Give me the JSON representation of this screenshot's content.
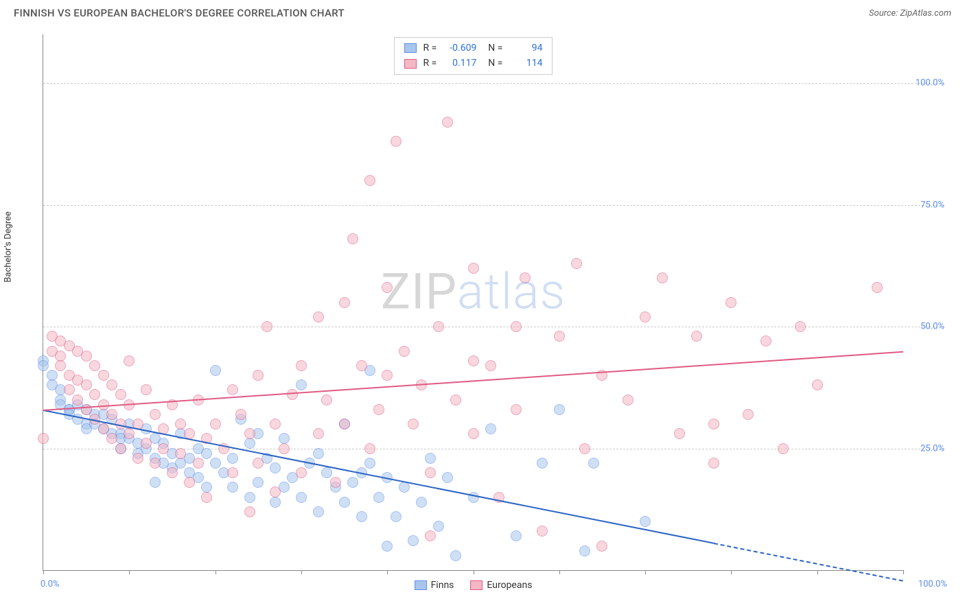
{
  "title": "FINNISH VS EUROPEAN BACHELOR'S DEGREE CORRELATION CHART",
  "source_label": "Source:",
  "source_name": "ZipAtlas.com",
  "ylabel": "Bachelor's Degree",
  "watermark_a": "ZIP",
  "watermark_b": "atlas",
  "chart": {
    "type": "scatter",
    "background_color": "#ffffff",
    "grid_color": "#cccccc",
    "axis_color": "#888888",
    "xlim": [
      0,
      100
    ],
    "ylim": [
      0,
      110
    ],
    "yticks": [
      25,
      50,
      75,
      100
    ],
    "ytick_labels": [
      "25.0%",
      "50.0%",
      "75.0%",
      "100.0%"
    ],
    "xticks": [
      0,
      10,
      20,
      30,
      40,
      50,
      60,
      70,
      80,
      90,
      100
    ],
    "x_start_label": "0.0%",
    "x_end_label": "100.0%",
    "tick_label_color": "#5b8def",
    "label_fontsize": 13,
    "marker_radius": 8,
    "marker_opacity": 0.55,
    "series": [
      {
        "name": "Finns",
        "fill": "#a8c6ec",
        "stroke": "#5b8def",
        "trend_color": "#2b64c4",
        "trend": {
          "y_at_x0": 33,
          "y_at_x100": -2,
          "solid_until_x": 78
        },
        "R": "-0.609",
        "N": "94",
        "points": [
          [
            0,
            43
          ],
          [
            0,
            42
          ],
          [
            1,
            40
          ],
          [
            1,
            38
          ],
          [
            2,
            37
          ],
          [
            2,
            35
          ],
          [
            2,
            34
          ],
          [
            3,
            33
          ],
          [
            3,
            33
          ],
          [
            3,
            32
          ],
          [
            4,
            34
          ],
          [
            4,
            31
          ],
          [
            5,
            33
          ],
          [
            5,
            30
          ],
          [
            5,
            29
          ],
          [
            6,
            32
          ],
          [
            6,
            30
          ],
          [
            7,
            29
          ],
          [
            7,
            32
          ],
          [
            8,
            31
          ],
          [
            8,
            28
          ],
          [
            9,
            28
          ],
          [
            9,
            27
          ],
          [
            9,
            25
          ],
          [
            10,
            30
          ],
          [
            10,
            27
          ],
          [
            11,
            26
          ],
          [
            11,
            24
          ],
          [
            12,
            29
          ],
          [
            12,
            25
          ],
          [
            13,
            27
          ],
          [
            13,
            23
          ],
          [
            13,
            18
          ],
          [
            14,
            26
          ],
          [
            14,
            22
          ],
          [
            15,
            24
          ],
          [
            15,
            21
          ],
          [
            16,
            28
          ],
          [
            16,
            22
          ],
          [
            17,
            23
          ],
          [
            17,
            20
          ],
          [
            18,
            25
          ],
          [
            18,
            19
          ],
          [
            19,
            24
          ],
          [
            19,
            17
          ],
          [
            20,
            41
          ],
          [
            20,
            22
          ],
          [
            21,
            20
          ],
          [
            22,
            23
          ],
          [
            22,
            17
          ],
          [
            23,
            31
          ],
          [
            24,
            26
          ],
          [
            24,
            15
          ],
          [
            25,
            28
          ],
          [
            25,
            18
          ],
          [
            26,
            23
          ],
          [
            27,
            21
          ],
          [
            27,
            14
          ],
          [
            28,
            27
          ],
          [
            28,
            17
          ],
          [
            29,
            19
          ],
          [
            30,
            38
          ],
          [
            30,
            15
          ],
          [
            31,
            22
          ],
          [
            32,
            24
          ],
          [
            32,
            12
          ],
          [
            33,
            20
          ],
          [
            34,
            17
          ],
          [
            35,
            14
          ],
          [
            35,
            30
          ],
          [
            36,
            18
          ],
          [
            37,
            20
          ],
          [
            37,
            11
          ],
          [
            38,
            41
          ],
          [
            38,
            22
          ],
          [
            39,
            15
          ],
          [
            40,
            19
          ],
          [
            40,
            5
          ],
          [
            41,
            11
          ],
          [
            42,
            17
          ],
          [
            43,
            6
          ],
          [
            44,
            14
          ],
          [
            45,
            23
          ],
          [
            46,
            9
          ],
          [
            47,
            19
          ],
          [
            48,
            3
          ],
          [
            50,
            15
          ],
          [
            52,
            29
          ],
          [
            55,
            7
          ],
          [
            58,
            22
          ],
          [
            60,
            33
          ],
          [
            64,
            22
          ],
          [
            70,
            10
          ],
          [
            63,
            4
          ]
        ]
      },
      {
        "name": "Europeans",
        "fill": "#f4b7c6",
        "stroke": "#e05a82",
        "trend_color": "#e05a82",
        "trend": {
          "y_at_x0": 33,
          "y_at_x100": 45,
          "solid_until_x": 100
        },
        "R": "0.117",
        "N": "114",
        "points": [
          [
            0,
            27
          ],
          [
            1,
            48
          ],
          [
            1,
            45
          ],
          [
            2,
            47
          ],
          [
            2,
            44
          ],
          [
            2,
            42
          ],
          [
            3,
            46
          ],
          [
            3,
            40
          ],
          [
            3,
            37
          ],
          [
            4,
            45
          ],
          [
            4,
            39
          ],
          [
            4,
            35
          ],
          [
            5,
            44
          ],
          [
            5,
            38
          ],
          [
            5,
            33
          ],
          [
            6,
            42
          ],
          [
            6,
            36
          ],
          [
            6,
            31
          ],
          [
            7,
            40
          ],
          [
            7,
            34
          ],
          [
            7,
            29
          ],
          [
            8,
            38
          ],
          [
            8,
            32
          ],
          [
            8,
            27
          ],
          [
            9,
            36
          ],
          [
            9,
            30
          ],
          [
            9,
            25
          ],
          [
            10,
            43
          ],
          [
            10,
            34
          ],
          [
            10,
            28
          ],
          [
            11,
            30
          ],
          [
            11,
            23
          ],
          [
            12,
            37
          ],
          [
            12,
            26
          ],
          [
            13,
            32
          ],
          [
            13,
            22
          ],
          [
            14,
            29
          ],
          [
            14,
            25
          ],
          [
            15,
            34
          ],
          [
            15,
            20
          ],
          [
            16,
            30
          ],
          [
            16,
            24
          ],
          [
            17,
            28
          ],
          [
            17,
            18
          ],
          [
            18,
            35
          ],
          [
            18,
            22
          ],
          [
            19,
            27
          ],
          [
            19,
            15
          ],
          [
            20,
            30
          ],
          [
            21,
            25
          ],
          [
            22,
            37
          ],
          [
            22,
            20
          ],
          [
            23,
            32
          ],
          [
            24,
            28
          ],
          [
            24,
            12
          ],
          [
            25,
            40
          ],
          [
            25,
            22
          ],
          [
            26,
            50
          ],
          [
            27,
            30
          ],
          [
            27,
            16
          ],
          [
            28,
            25
          ],
          [
            29,
            36
          ],
          [
            30,
            42
          ],
          [
            30,
            20
          ],
          [
            32,
            52
          ],
          [
            32,
            28
          ],
          [
            33,
            35
          ],
          [
            34,
            18
          ],
          [
            35,
            55
          ],
          [
            35,
            30
          ],
          [
            36,
            68
          ],
          [
            37,
            42
          ],
          [
            38,
            25
          ],
          [
            38,
            80
          ],
          [
            39,
            33
          ],
          [
            40,
            58
          ],
          [
            41,
            88
          ],
          [
            42,
            45
          ],
          [
            43,
            30
          ],
          [
            44,
            38
          ],
          [
            45,
            20
          ],
          [
            46,
            50
          ],
          [
            47,
            92
          ],
          [
            48,
            35
          ],
          [
            50,
            62
          ],
          [
            50,
            28
          ],
          [
            52,
            42
          ],
          [
            53,
            15
          ],
          [
            55,
            33
          ],
          [
            56,
            60
          ],
          [
            58,
            8
          ],
          [
            60,
            48
          ],
          [
            62,
            63
          ],
          [
            63,
            25
          ],
          [
            65,
            40
          ],
          [
            65,
            5
          ],
          [
            68,
            35
          ],
          [
            70,
            52
          ],
          [
            72,
            60
          ],
          [
            74,
            28
          ],
          [
            76,
            48
          ],
          [
            78,
            22
          ],
          [
            80,
            55
          ],
          [
            82,
            32
          ],
          [
            84,
            47
          ],
          [
            86,
            25
          ],
          [
            88,
            50
          ],
          [
            90,
            38
          ],
          [
            97,
            58
          ],
          [
            78,
            30
          ],
          [
            45,
            7
          ],
          [
            55,
            50
          ],
          [
            50,
            43
          ],
          [
            40,
            40
          ]
        ]
      }
    ]
  },
  "legend_bottom": [
    {
      "label": "Finns",
      "fill": "#a8c6ec",
      "stroke": "#5b8def"
    },
    {
      "label": "Europeans",
      "fill": "#f4b7c6",
      "stroke": "#e05a82"
    }
  ]
}
